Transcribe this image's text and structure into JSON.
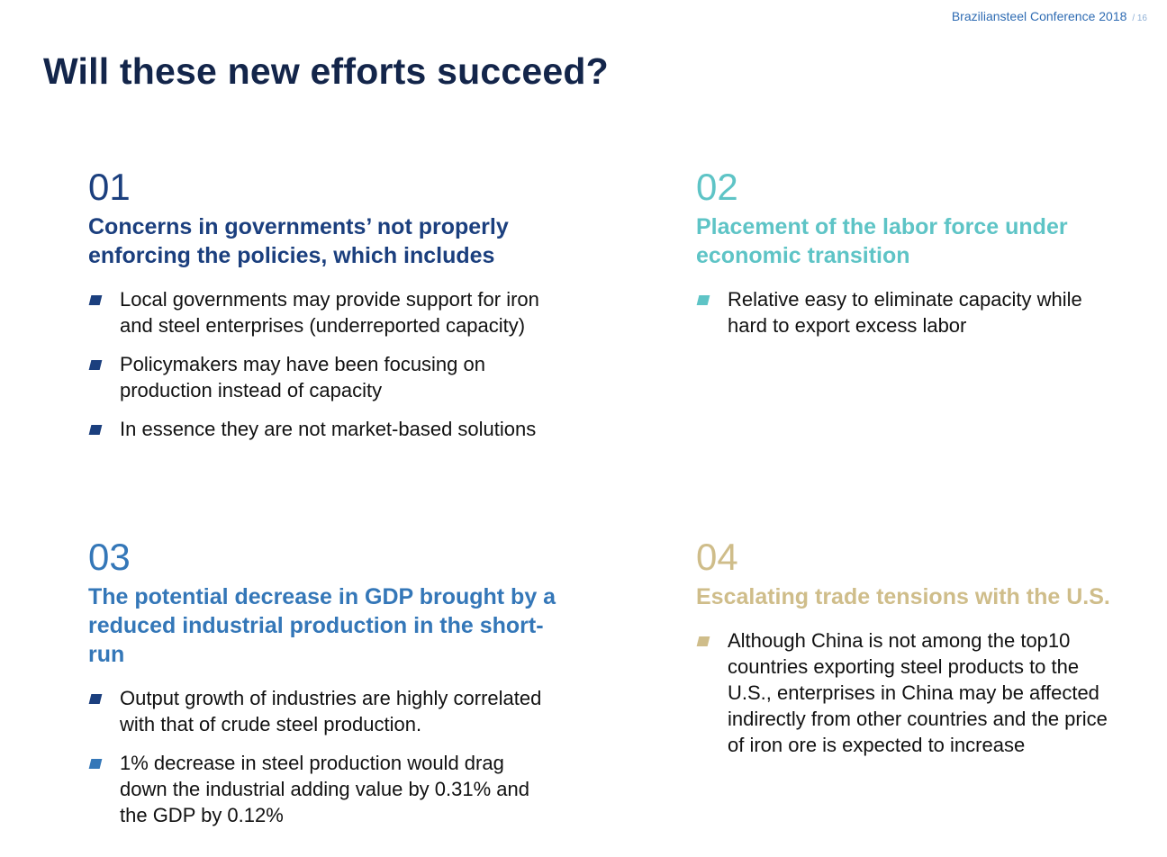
{
  "header": {
    "conference": "Braziliansteel Conference 2018",
    "page_number": "/ 16"
  },
  "title": "Will these new efforts succeed?",
  "colors": {
    "title": "#13254a",
    "section1": "#1b3f7e",
    "section2": "#5ec4c6",
    "section3": "#3477b8",
    "section4": "#cfbd8a"
  },
  "sections": [
    {
      "number": "01",
      "heading": "Concerns in governments’ not properly enforcing the policies, which includes",
      "bullets": [
        "Local governments may provide support for iron and steel enterprises (underreported capacity)",
        "Policymakers may have been focusing on production instead of capacity",
        "In essence they are not market-based solutions"
      ]
    },
    {
      "number": "02",
      "heading": "Placement of the labor force under economic transition",
      "bullets": [
        "Relative easy to eliminate capacity while hard to export excess labor"
      ]
    },
    {
      "number": "03",
      "heading": "The potential decrease in GDP brought by a reduced industrial production in the short-run",
      "bullets": [
        "Output growth of industries are highly correlated with that of  crude steel production.",
        "1% decrease in steel production would drag down the industrial adding value by 0.31% and the GDP by 0.12%"
      ]
    },
    {
      "number": "04",
      "heading": "Escalating trade tensions with the U.S.",
      "bullets": [
        "Although China is not among the top10 countries exporting steel products to the U.S., enterprises in China may be affected indirectly from other countries and the price of iron ore is expected to increase"
      ]
    }
  ]
}
